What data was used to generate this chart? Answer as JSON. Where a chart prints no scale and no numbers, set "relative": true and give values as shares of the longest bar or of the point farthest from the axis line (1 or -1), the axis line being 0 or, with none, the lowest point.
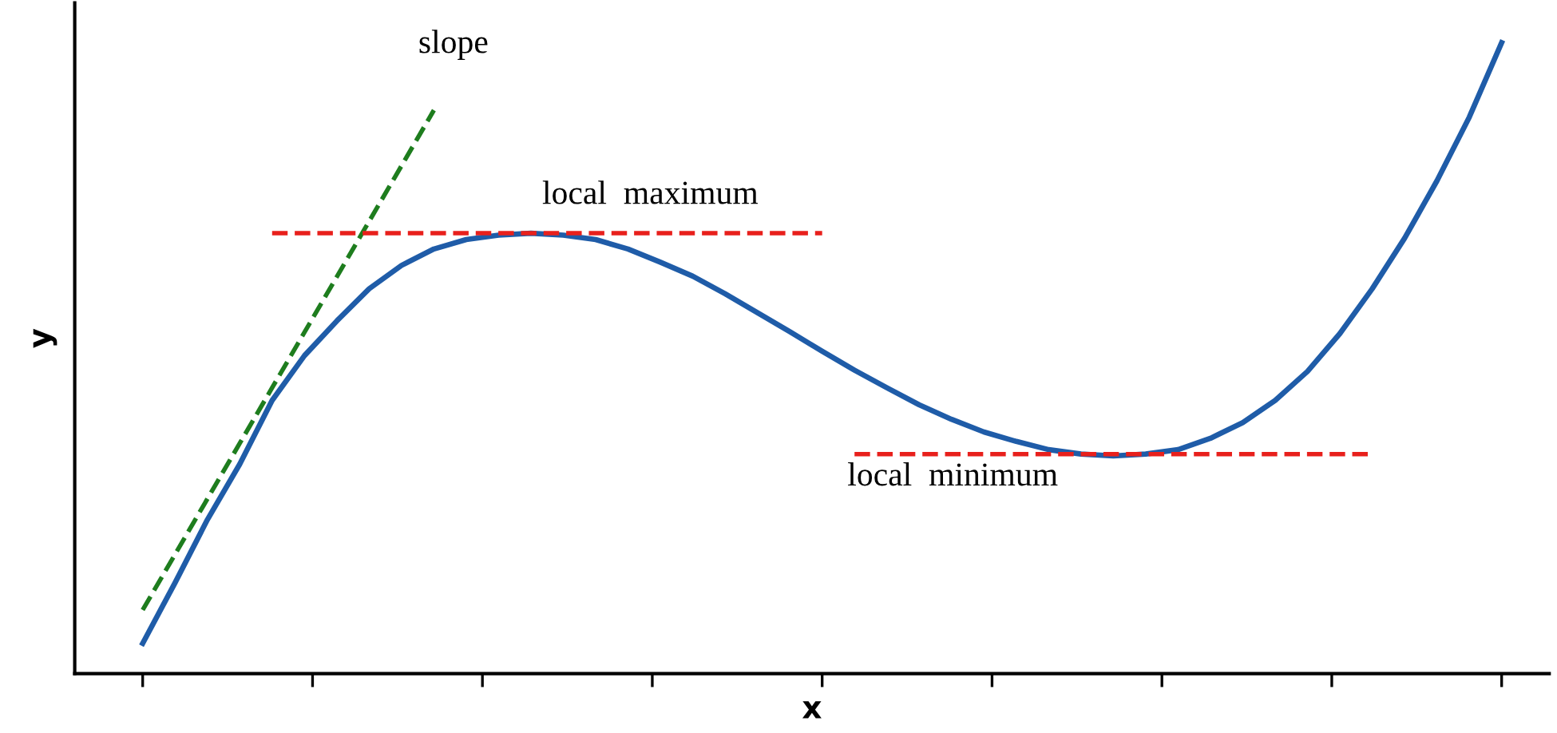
{
  "chart_data": {
    "type": "line",
    "relative": true,
    "xlabel": "x",
    "ylabel": "y",
    "grid": false,
    "legend": false,
    "categories": [
      null,
      null,
      null,
      null,
      null,
      null,
      null,
      null,
      null,
      null,
      null,
      null,
      null,
      null,
      null,
      null,
      null,
      null,
      null,
      null,
      null,
      null,
      null,
      null,
      null,
      null,
      null,
      null,
      null,
      null,
      null,
      null,
      null,
      null,
      null,
      null,
      null,
      null,
      null,
      null,
      null,
      null,
      null
    ],
    "series": [
      {
        "color": "#1f5ca8",
        "line_style": "solid",
        "values": [
          0.048,
          0.144,
          0.244,
          0.332,
          0.433,
          0.504,
          0.559,
          0.61,
          0.647,
          0.673,
          0.688,
          0.695,
          0.698,
          0.695,
          0.688,
          0.673,
          0.652,
          0.63,
          0.602,
          0.572,
          0.542,
          0.511,
          0.481,
          0.453,
          0.426,
          0.403,
          0.383,
          0.368,
          0.355,
          0.348,
          0.345,
          0.348,
          0.355,
          0.373,
          0.398,
          0.433,
          0.479,
          0.539,
          0.61,
          0.69,
          0.781,
          0.882,
          1.0
        ]
      },
      {
        "color": "#1e7d1e",
        "line_style": "dashed",
        "values": [
          0.101,
          0.189,
          0.277,
          0.365,
          0.453,
          0.541,
          0.629,
          0.717,
          0.805,
          0.893,
          null,
          null,
          null,
          null,
          null,
          null,
          null,
          null,
          null,
          null,
          null,
          null,
          null,
          null,
          null,
          null,
          null,
          null,
          null,
          null,
          null,
          null,
          null,
          null,
          null,
          null,
          null,
          null,
          null,
          null,
          null,
          null,
          null
        ]
      },
      {
        "color": "#e8201c",
        "line_style": "dashed",
        "values": [
          null,
          null,
          null,
          null,
          0.698,
          0.698,
          0.698,
          0.698,
          0.698,
          0.698,
          0.698,
          0.698,
          0.698,
          0.698,
          0.698,
          0.698,
          0.698,
          0.698,
          0.698,
          0.698,
          0.698,
          0.698,
          null,
          null,
          null,
          null,
          null,
          null,
          null,
          null,
          null,
          null,
          null,
          null,
          null,
          null,
          null,
          null,
          null,
          null,
          null,
          null,
          null
        ]
      },
      {
        "color": "#e8201c",
        "line_style": "dashed",
        "values": [
          null,
          null,
          null,
          null,
          null,
          null,
          null,
          null,
          null,
          null,
          null,
          null,
          null,
          null,
          null,
          null,
          null,
          null,
          null,
          null,
          null,
          null,
          0.348,
          0.348,
          0.348,
          0.348,
          0.348,
          0.348,
          0.348,
          0.348,
          0.348,
          0.348,
          0.348,
          0.348,
          0.348,
          0.348,
          0.348,
          0.348,
          0.348,
          null,
          null,
          null,
          null
        ]
      }
    ],
    "annotations": [
      "slope",
      "local  maximum",
      "local  minimum"
    ]
  }
}
